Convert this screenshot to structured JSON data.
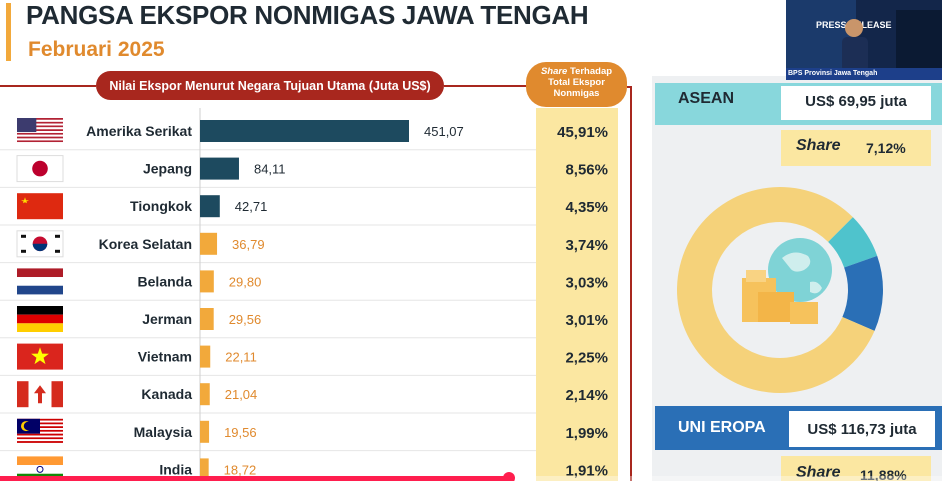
{
  "page": {
    "title": "PANGSA EKSPOR NONMIGAS JAWA TENGAH",
    "subtitle": "Februari 2025"
  },
  "headers": {
    "value_header": "Nilai Ekspor Menurut Negara Tujuan Utama (Juta US$)",
    "share_header_italic": "Share",
    "share_header_rest1": " Terhadap",
    "share_header_rest2": "Total Ekspor",
    "share_header_rest3": "Nonmigas"
  },
  "chart_data": {
    "type": "bar",
    "orientation": "horizontal",
    "title": "Nilai Ekspor Menurut Negara Tujuan Utama (Juta US$)",
    "categories": [
      "Amerika Serikat",
      "Jepang",
      "Tiongkok",
      "Korea Selatan",
      "Belanda",
      "Jerman",
      "Vietnam",
      "Kanada",
      "Malaysia",
      "India"
    ],
    "values": [
      451.07,
      84.11,
      42.71,
      36.79,
      29.8,
      29.56,
      22.11,
      21.04,
      19.56,
      18.72
    ],
    "value_labels": [
      "451,07",
      "84,11",
      "42,71",
      "36,79",
      "29,80",
      "29,56",
      "22,11",
      "21,04",
      "19,56",
      "18,72"
    ],
    "shares": [
      "45,91%",
      "8,56%",
      "4,35%",
      "3,74%",
      "3,03%",
      "3,01%",
      "2,25%",
      "2,14%",
      "1,99%",
      "1,91%"
    ],
    "flags": [
      "us-flag",
      "jp-flag",
      "cn-flag",
      "kr-flag",
      "nl-flag",
      "de-flag",
      "vn-flag",
      "ca-flag",
      "my-flag",
      "in-flag"
    ],
    "bar_colors": [
      "#1d4a5f",
      "#1d4a5f",
      "#1d4a5f",
      "#f2a93b",
      "#f2a93b",
      "#f2a93b",
      "#f2a93b",
      "#f2a93b",
      "#f2a93b",
      "#f2a93b"
    ],
    "label_colors": [
      "#1f2a33",
      "#1f2a33",
      "#1f2a33",
      "#e08a2e",
      "#e08a2e",
      "#e08a2e",
      "#e08a2e",
      "#e08a2e",
      "#e08a2e",
      "#e08a2e"
    ],
    "xlim": [
      0,
      451.07
    ],
    "grid": false
  },
  "regions": {
    "asean": {
      "label": "ASEAN",
      "value": "US$ 69,95 juta",
      "share_label": "Share",
      "share_value": "7,12%"
    },
    "uni_eropa": {
      "label": "UNI EROPA",
      "value": "US$ 116,73 juta",
      "share_label": "Share",
      "share_value": "11,88%"
    }
  },
  "donut": {
    "icon": "globe-boxes-icon",
    "segments": [
      {
        "share": 7.12,
        "color": "#4fc3cc"
      },
      {
        "share": 11.88,
        "color": "#2a6fb6"
      },
      {
        "share": 81.0,
        "color": "#f5d27a"
      }
    ]
  },
  "video": {
    "caption": "BPS Provinsi Jawa Tengah",
    "screen_text": "PRESS RELEASE"
  },
  "player": {
    "progress": 0.54
  }
}
